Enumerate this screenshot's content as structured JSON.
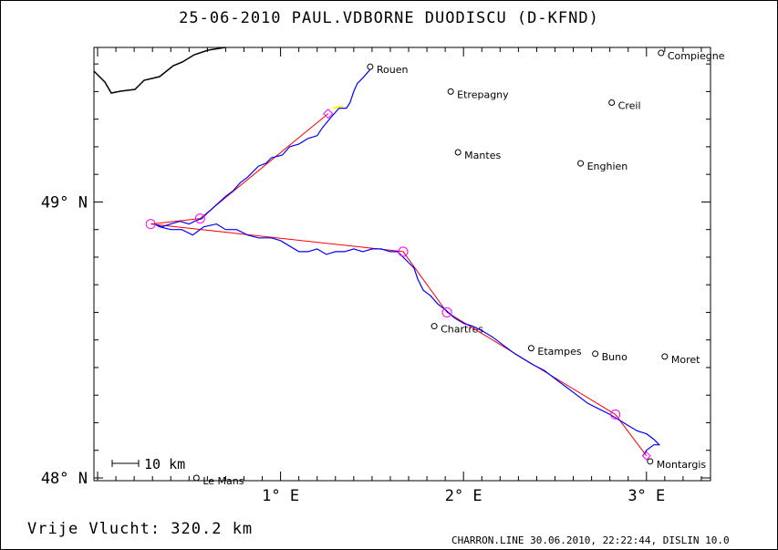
{
  "title": "25-06-2010    PAUL.VDBORNE    DUODISCU (D-KFND)",
  "distance_label": "Vrije Vlucht:  320.2 km",
  "footer": "CHARRON.LINE 30.06.2010, 22:22:44, DISLIN 10.0",
  "scale_label": "10 km",
  "axes": {
    "x_ticks": [
      {
        "lon": 1,
        "label": "1° E"
      },
      {
        "lon": 2,
        "label": "2° E"
      },
      {
        "lon": 3,
        "label": "3° E"
      }
    ],
    "y_ticks": [
      {
        "lat": 49,
        "label": "49° N"
      },
      {
        "lat": 48,
        "label": "48° N"
      }
    ],
    "lon_range": [
      -0.02,
      3.35
    ],
    "lat_range": [
      47.99,
      49.56
    ]
  },
  "colors": {
    "track": "#0000ff",
    "task": "#ff0000",
    "turnpoint": "#ff00ff",
    "highlight": "#ffff00",
    "coast": "#000000"
  },
  "cities": [
    {
      "name": "Rouen",
      "lon": 1.49,
      "lat": 49.49
    },
    {
      "name": "Etrepagny",
      "lon": 1.93,
      "lat": 49.4
    },
    {
      "name": "Compiegne",
      "lon": 3.08,
      "lat": 49.54
    },
    {
      "name": "Creil",
      "lon": 2.81,
      "lat": 49.36
    },
    {
      "name": "Mantes",
      "lon": 1.97,
      "lat": 49.18
    },
    {
      "name": "Enghien",
      "lon": 2.64,
      "lat": 49.14
    },
    {
      "name": "Chartres",
      "lon": 1.84,
      "lat": 48.55
    },
    {
      "name": "Etampes",
      "lon": 2.37,
      "lat": 48.47
    },
    {
      "name": "Buno",
      "lon": 2.72,
      "lat": 48.45
    },
    {
      "name": "Moret",
      "lon": 3.1,
      "lat": 48.44
    },
    {
      "name": "Le Mans",
      "lon": 0.54,
      "lat": 48.0
    },
    {
      "name": "Montargis",
      "lon": 3.02,
      "lat": 48.06
    }
  ],
  "task_points": [
    {
      "lon": 1.26,
      "lat": 49.32
    },
    {
      "lon": 0.56,
      "lat": 48.94
    },
    {
      "lon": 0.29,
      "lat": 48.92
    },
    {
      "lon": 1.67,
      "lat": 48.82
    },
    {
      "lon": 1.91,
      "lat": 48.6
    },
    {
      "lon": 2.83,
      "lat": 48.23
    },
    {
      "lon": 3.0,
      "lat": 48.08
    }
  ],
  "track": [
    [
      1.49,
      49.48
    ],
    [
      1.45,
      49.45
    ],
    [
      1.42,
      49.43
    ],
    [
      1.4,
      49.4
    ],
    [
      1.38,
      49.36
    ],
    [
      1.36,
      49.34
    ],
    [
      1.32,
      49.34
    ],
    [
      1.28,
      49.31
    ],
    [
      1.23,
      49.27
    ],
    [
      1.2,
      49.24
    ],
    [
      1.15,
      49.23
    ],
    [
      1.1,
      49.21
    ],
    [
      1.05,
      49.2
    ],
    [
      1.01,
      49.17
    ],
    [
      0.95,
      49.16
    ],
    [
      0.92,
      49.14
    ],
    [
      0.88,
      49.13
    ],
    [
      0.85,
      49.11
    ],
    [
      0.82,
      49.09
    ],
    [
      0.78,
      49.07
    ],
    [
      0.74,
      49.04
    ],
    [
      0.7,
      49.02
    ],
    [
      0.65,
      48.99
    ],
    [
      0.6,
      48.96
    ],
    [
      0.57,
      48.94
    ],
    [
      0.53,
      48.93
    ],
    [
      0.5,
      48.92
    ],
    [
      0.45,
      48.93
    ],
    [
      0.4,
      48.92
    ],
    [
      0.35,
      48.91
    ],
    [
      0.31,
      48.92
    ],
    [
      0.34,
      48.91
    ],
    [
      0.4,
      48.9
    ],
    [
      0.46,
      48.9
    ],
    [
      0.52,
      48.88
    ],
    [
      0.58,
      48.91
    ],
    [
      0.65,
      48.92
    ],
    [
      0.7,
      48.9
    ],
    [
      0.76,
      48.9
    ],
    [
      0.82,
      48.88
    ],
    [
      0.88,
      48.87
    ],
    [
      0.95,
      48.87
    ],
    [
      1.0,
      48.86
    ],
    [
      1.05,
      48.84
    ],
    [
      1.1,
      48.82
    ],
    [
      1.15,
      48.82
    ],
    [
      1.2,
      48.83
    ],
    [
      1.25,
      48.81
    ],
    [
      1.3,
      48.82
    ],
    [
      1.35,
      48.82
    ],
    [
      1.4,
      48.83
    ],
    [
      1.45,
      48.82
    ],
    [
      1.5,
      48.83
    ],
    [
      1.55,
      48.83
    ],
    [
      1.6,
      48.82
    ],
    [
      1.64,
      48.82
    ],
    [
      1.67,
      48.8
    ],
    [
      1.7,
      48.78
    ],
    [
      1.73,
      48.76
    ],
    [
      1.75,
      48.72
    ],
    [
      1.78,
      48.68
    ],
    [
      1.82,
      48.66
    ],
    [
      1.86,
      48.63
    ],
    [
      1.9,
      48.61
    ],
    [
      1.95,
      48.58
    ],
    [
      2.0,
      48.56
    ],
    [
      2.05,
      48.55
    ],
    [
      2.11,
      48.53
    ],
    [
      2.16,
      48.51
    ],
    [
      2.22,
      48.48
    ],
    [
      2.28,
      48.45
    ],
    [
      2.33,
      48.43
    ],
    [
      2.38,
      48.41
    ],
    [
      2.44,
      48.39
    ],
    [
      2.5,
      48.36
    ],
    [
      2.56,
      48.33
    ],
    [
      2.62,
      48.3
    ],
    [
      2.68,
      48.27
    ],
    [
      2.74,
      48.25
    ],
    [
      2.8,
      48.23
    ],
    [
      2.85,
      48.21
    ],
    [
      2.9,
      48.19
    ],
    [
      2.95,
      48.17
    ],
    [
      3.0,
      48.16
    ],
    [
      3.04,
      48.14
    ],
    [
      3.07,
      48.12
    ],
    [
      3.04,
      48.12
    ],
    [
      3.0,
      48.1
    ],
    [
      2.98,
      48.08
    ]
  ]
}
